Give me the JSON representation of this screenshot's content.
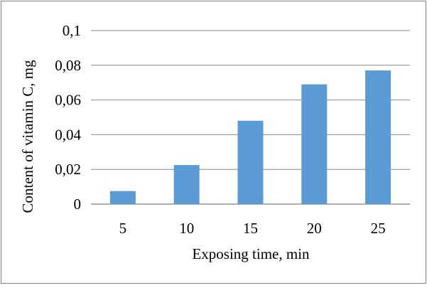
{
  "chart_data": {
    "type": "bar",
    "categories": [
      "5",
      "10",
      "15",
      "20",
      "25"
    ],
    "values": [
      0.0075,
      0.0225,
      0.048,
      0.069,
      0.077
    ],
    "y_ticks": [
      "0",
      "0,02",
      "0,04",
      "0,06",
      "0,08",
      "0,1"
    ],
    "ylim": [
      0,
      0.1
    ],
    "xlabel": "Exposing time, min",
    "ylabel": "Content of vitamin C, mg",
    "grid": true,
    "legend": "none",
    "bar_color": "#5B9BD5",
    "grid_color": "#888888",
    "border_color": "#8c8c8c"
  }
}
